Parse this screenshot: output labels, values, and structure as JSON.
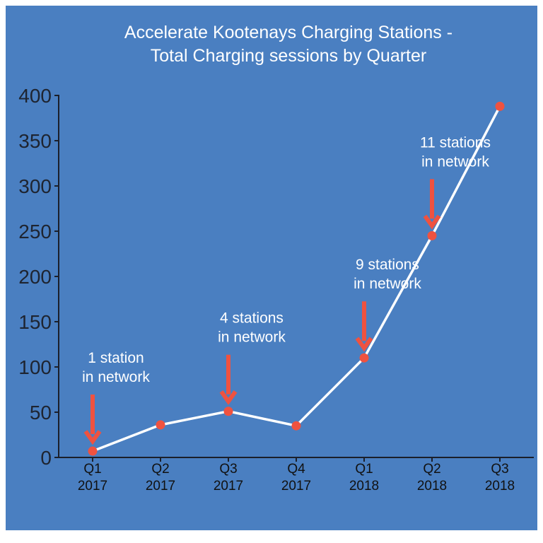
{
  "chart_data": {
    "type": "line",
    "title": [
      "Accelerate Kootenays Charging Stations -",
      "Total Charging sessions by Quarter"
    ],
    "xlabel": "",
    "ylabel": "",
    "categories": [
      [
        "Q1",
        "2017"
      ],
      [
        "Q2",
        "2017"
      ],
      [
        "Q3",
        "2017"
      ],
      [
        "Q4",
        "2017"
      ],
      [
        "Q1",
        "2018"
      ],
      [
        "Q2",
        "2018"
      ],
      [
        "Q3",
        "2018"
      ]
    ],
    "values": [
      7,
      36,
      51,
      35,
      110,
      245,
      388
    ],
    "ylim": [
      0,
      400
    ],
    "yticks": [
      "0",
      "50",
      "100",
      "150",
      "200",
      "250",
      "300",
      "350",
      "400"
    ],
    "grid": false,
    "annotations": [
      {
        "index": 0,
        "lines": [
          "1 station",
          "in network"
        ]
      },
      {
        "index": 2,
        "lines": [
          "4 stations",
          "in network"
        ]
      },
      {
        "index": 4,
        "lines": [
          "9 stations",
          "in network"
        ]
      },
      {
        "index": 5,
        "lines": [
          "11 stations",
          "in network"
        ]
      }
    ],
    "colors": {
      "background": "#4a7fc1",
      "line": "#ffffff",
      "marker": "#ef5240",
      "arrow": "#ef5240",
      "axis": "#1b1f2a"
    }
  }
}
